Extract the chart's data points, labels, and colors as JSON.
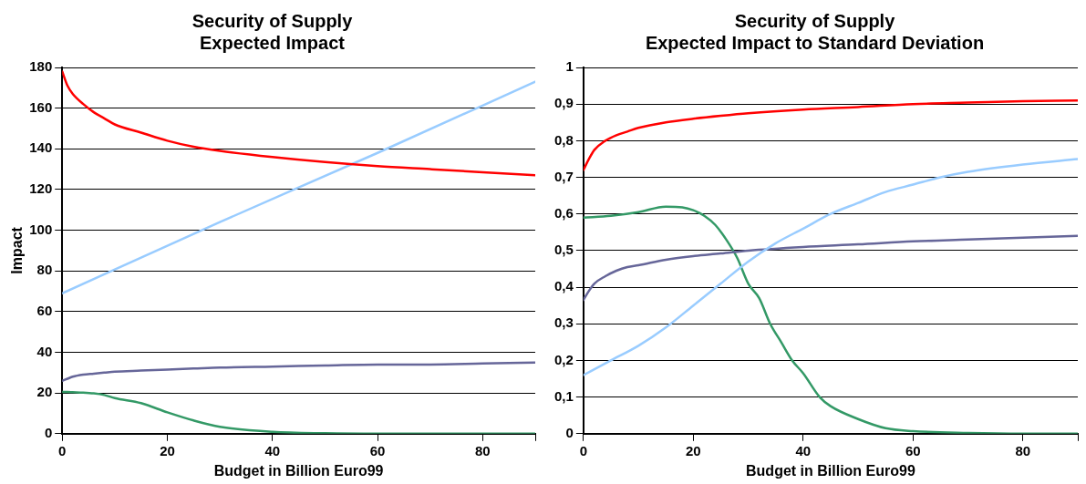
{
  "chart_data": [
    {
      "type": "line",
      "title": "Security of Supply\nExpected Impact",
      "xlabel": "Budget in Billion Euro99",
      "ylabel": "Impact",
      "xlim": [
        0,
        90
      ],
      "ylim": [
        0,
        180
      ],
      "xticks": [
        0,
        20,
        40,
        60,
        80,
        {
          "value": 90,
          "label": null
        }
      ],
      "yticks": [
        0,
        20,
        40,
        60,
        80,
        100,
        120,
        140,
        160,
        180
      ],
      "grid": "y",
      "legend": false,
      "marker": "none",
      "line_style": "solid",
      "series": [
        {
          "color": "#ff0000",
          "x": [
            0,
            1,
            2,
            4,
            6,
            8,
            10,
            15,
            20,
            25,
            30,
            40,
            50,
            60,
            70,
            80,
            90
          ],
          "values": [
            178,
            171,
            167,
            162,
            158,
            155,
            152,
            148,
            144,
            141,
            139,
            136,
            133.5,
            131.5,
            130,
            128.5,
            127
          ]
        },
        {
          "color": "#99ccff",
          "x": [
            0,
            30,
            60,
            90
          ],
          "values": [
            69,
            104,
            138,
            173
          ]
        },
        {
          "color": "#666699",
          "x": [
            0,
            1,
            2,
            4,
            6,
            8,
            10,
            15,
            20,
            25,
            30,
            40,
            50,
            60,
            70,
            80,
            90
          ],
          "values": [
            26,
            27,
            28,
            29,
            29.5,
            30,
            30.5,
            31,
            31.5,
            32,
            32.5,
            33,
            33.5,
            34,
            34,
            34.5,
            35
          ]
        },
        {
          "color": "#339966",
          "x": [
            0,
            1,
            2,
            4,
            6,
            8,
            10,
            15,
            20,
            25,
            30,
            40,
            50,
            60,
            70,
            80,
            90
          ],
          "values": [
            20.5,
            20.5,
            20.4,
            20.2,
            19.8,
            19,
            17.5,
            15,
            10.5,
            6.5,
            3.4,
            0.9,
            0.2,
            0,
            0,
            0,
            0
          ]
        }
      ]
    },
    {
      "type": "line",
      "title": "Security of Supply\nExpected Impact to Standard Deviation",
      "xlabel": "Budget in Billion Euro99",
      "xlim": [
        0,
        90
      ],
      "ylim": [
        0,
        1
      ],
      "xticks": [
        0,
        20,
        40,
        60,
        80,
        {
          "value": 90,
          "label": null
        }
      ],
      "yticks": [
        0,
        {
          "value": 0.1,
          "label": "0,1"
        },
        {
          "value": 0.2,
          "label": "0,2"
        },
        {
          "value": 0.3,
          "label": "0,3"
        },
        {
          "value": 0.4,
          "label": "0,4"
        },
        {
          "value": 0.5,
          "label": "0,5"
        },
        {
          "value": 0.6,
          "label": "0,6"
        },
        {
          "value": 0.7,
          "label": "0,7"
        },
        {
          "value": 0.8,
          "label": "0,8"
        },
        {
          "value": 0.9,
          "label": "0,9"
        },
        1
      ],
      "grid": "y",
      "legend": false,
      "marker": "none",
      "line_style": "solid",
      "series": [
        {
          "color": "#ff0000",
          "x": [
            0,
            1,
            2,
            4,
            6,
            8,
            10,
            15,
            20,
            25,
            30,
            40,
            50,
            60,
            70,
            80,
            90
          ],
          "values": [
            0.72,
            0.75,
            0.775,
            0.8,
            0.815,
            0.825,
            0.835,
            0.85,
            0.86,
            0.868,
            0.875,
            0.885,
            0.892,
            0.9,
            0.904,
            0.908,
            0.91
          ]
        },
        {
          "color": "#99ccff",
          "x": [
            0,
            5,
            10,
            15,
            20,
            25,
            30,
            35,
            40,
            45,
            50,
            55,
            60,
            65,
            70,
            80,
            90
          ],
          "values": [
            0.16,
            0.2,
            0.24,
            0.29,
            0.35,
            0.41,
            0.47,
            0.52,
            0.56,
            0.6,
            0.63,
            0.66,
            0.68,
            0.7,
            0.715,
            0.735,
            0.75
          ]
        },
        {
          "color": "#666699",
          "x": [
            0,
            1,
            2,
            4,
            6,
            8,
            10,
            15,
            20,
            25,
            30,
            40,
            50,
            60,
            70,
            80,
            90
          ],
          "values": [
            0.365,
            0.39,
            0.41,
            0.43,
            0.445,
            0.455,
            0.46,
            0.475,
            0.485,
            0.492,
            0.5,
            0.51,
            0.517,
            0.525,
            0.53,
            0.535,
            0.54
          ]
        },
        {
          "color": "#339966",
          "x": [
            0,
            5,
            10,
            15,
            18,
            20,
            22,
            24,
            26,
            28,
            30,
            32,
            34,
            36,
            38,
            40,
            43,
            45,
            50,
            55,
            60,
            70,
            80,
            90
          ],
          "values": [
            0.59,
            0.595,
            0.605,
            0.62,
            0.618,
            0.61,
            0.595,
            0.57,
            0.53,
            0.48,
            0.41,
            0.37,
            0.3,
            0.25,
            0.2,
            0.165,
            0.1,
            0.075,
            0.04,
            0.015,
            0.007,
            0.002,
            0,
            0
          ]
        }
      ]
    }
  ]
}
